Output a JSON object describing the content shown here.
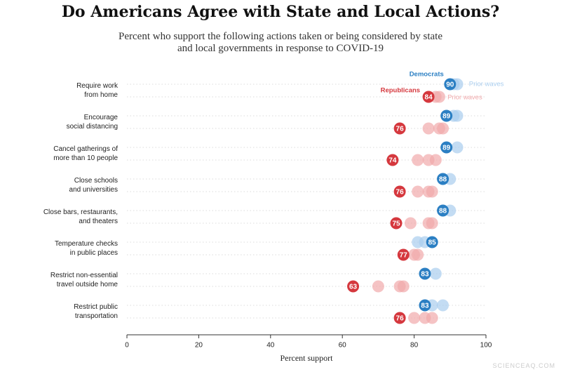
{
  "chart_data": {
    "type": "dot",
    "title": "Do Americans Agree with State and Local Actions?",
    "subtitle": "Percent who support the following actions taken or being considered by state\nand local governments in response to COVID-19",
    "x_label": "Percent support",
    "categories": [
      "Require work\nfrom home",
      "Encourage\nsocial distancing",
      "Cancel gatherings of\nmore than 10 people",
      "Close schools\nand universities",
      "Close bars, restaurants,\nand theaters",
      "Temperature checks\nin public places",
      "Restrict non-essential\ntravel outside home",
      "Restrict public\ntransportation"
    ],
    "series": [
      {
        "name": "Democrats",
        "color": "#2b7fc3",
        "values": [
          90,
          89,
          89,
          88,
          88,
          85,
          83,
          83
        ]
      },
      {
        "name": "Republicans",
        "color": "#d5383e",
        "values": [
          84,
          76,
          74,
          76,
          75,
          77,
          63,
          76
        ]
      }
    ],
    "prior_waves": [
      {
        "name": "Prior waves",
        "color": "#a9cdee",
        "values": [
          [
            91,
            92
          ],
          [
            91,
            92
          ],
          [
            92
          ],
          [
            90
          ],
          [
            90
          ],
          [
            81,
            83
          ],
          [
            86
          ],
          [
            85,
            88
          ]
        ]
      },
      {
        "name": "Prior waves",
        "color": "#f1a9ab",
        "values": [
          [
            86,
            87
          ],
          [
            84,
            87,
            88
          ],
          [
            81,
            84,
            86
          ],
          [
            81,
            84,
            85
          ],
          [
            79,
            84,
            85
          ],
          [
            80,
            81
          ],
          [
            70,
            76,
            77
          ],
          [
            80,
            83,
            85
          ]
        ]
      }
    ],
    "xlim": [
      0,
      100
    ],
    "xticks": [
      0,
      20,
      40,
      60,
      80,
      100
    ],
    "grid": true,
    "watermark": "SCIENCEAQ.COM"
  }
}
